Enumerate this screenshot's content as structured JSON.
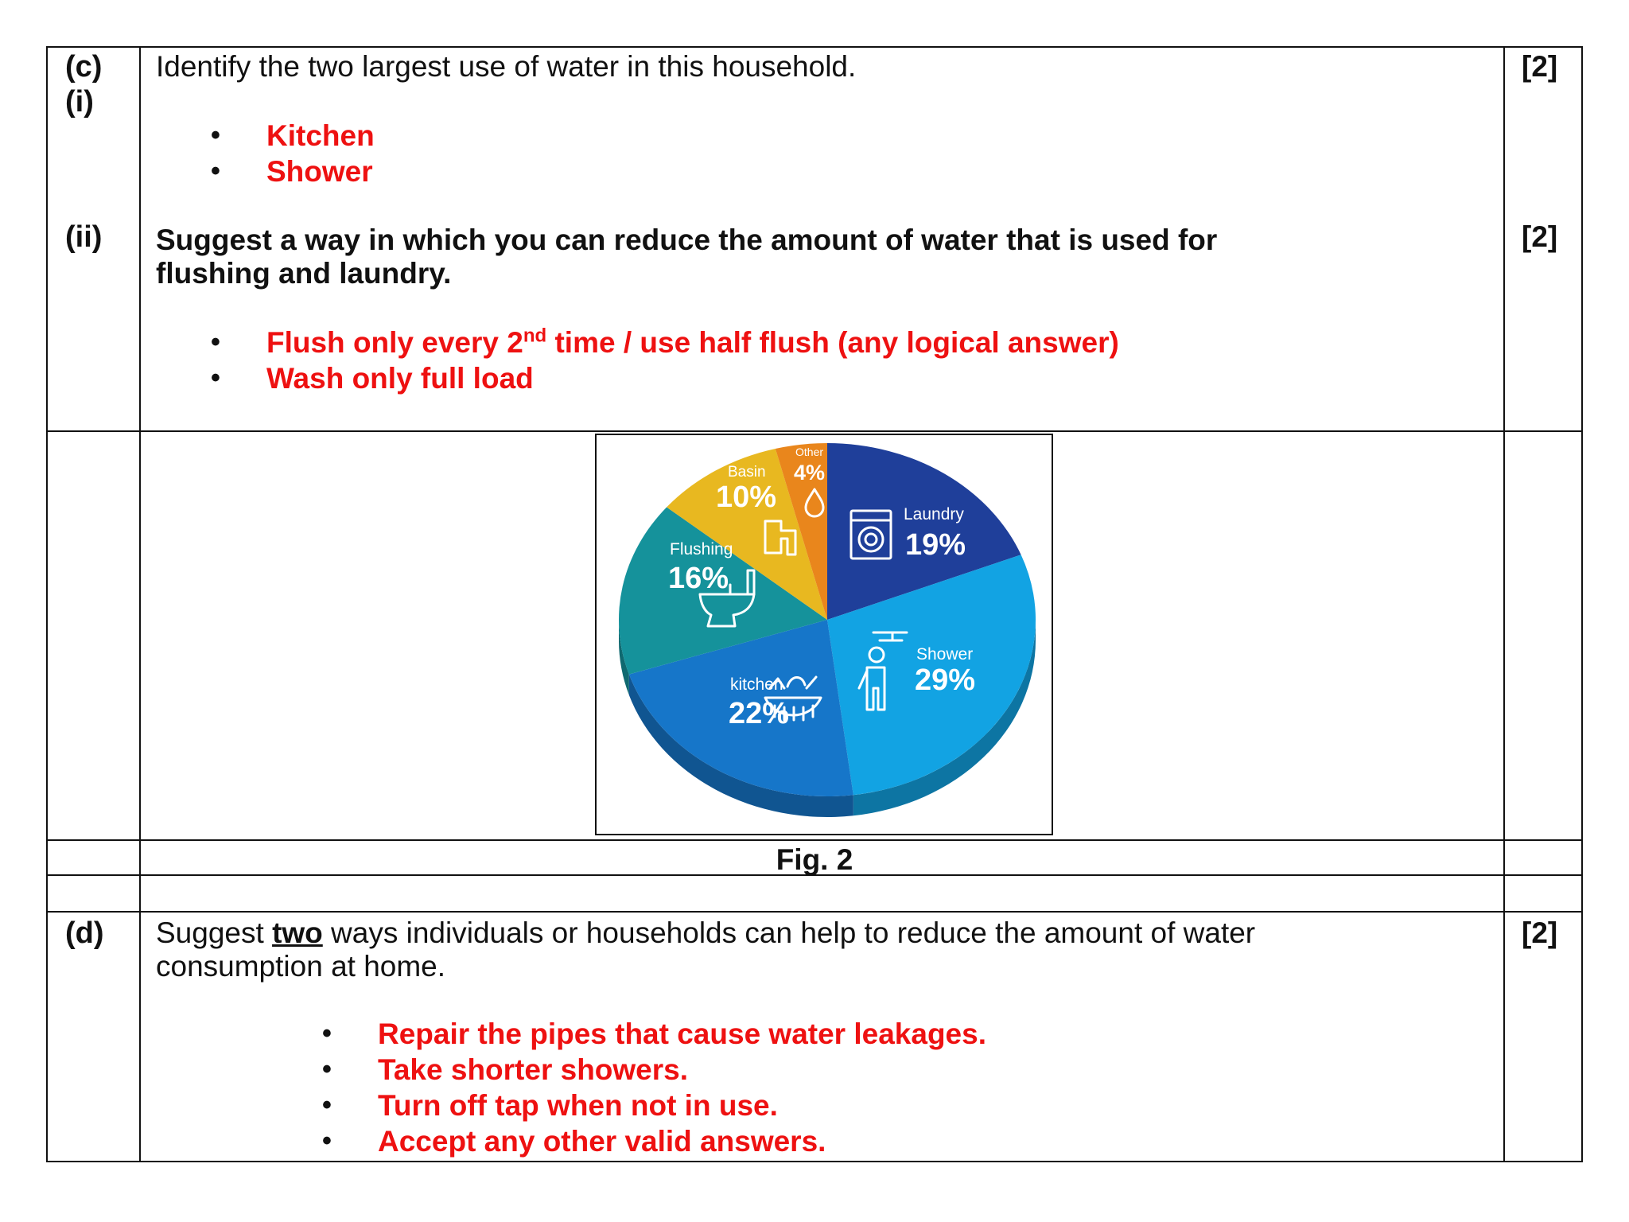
{
  "part_c": {
    "label_c": "(c)",
    "label_i": "(i)",
    "question_i": "Identify the two largest use of water in this household.",
    "marks_i": "[2]",
    "answers_i": [
      "Kitchen",
      "Shower"
    ],
    "label_ii": "(ii)",
    "question_ii_line1": "Suggest a way in which you can reduce the amount of water that is used for",
    "question_ii_line2": "flushing and laundry.",
    "marks_ii": "[2]",
    "answer_ii_1_pre": "Flush only every 2",
    "answer_ii_1_sup": "nd",
    "answer_ii_1_post": " time / use half flush (any logical answer)",
    "answer_ii_2": "Wash only full load"
  },
  "figure": {
    "caption": "Fig. 2"
  },
  "chart_data": {
    "type": "pie",
    "title": "",
    "slices": [
      {
        "label": "Laundry",
        "value": 19,
        "display": "19%",
        "color": "#1f3f9a",
        "icon": "washing-machine-icon"
      },
      {
        "label": "Shower",
        "value": 29,
        "display": "29%",
        "color": "#12a3e3",
        "icon": "shower-person-icon"
      },
      {
        "label": "kitchen",
        "value": 22,
        "display": "22%",
        "color": "#1676c9",
        "icon": "food-basket-icon"
      },
      {
        "label": "Flushing",
        "value": 16,
        "display": "16%",
        "color": "#15929b",
        "icon": "toilet-icon"
      },
      {
        "label": "Basin",
        "value": 10,
        "display": "10%",
        "color": "#e8b820",
        "icon": "tap-icon"
      },
      {
        "label": "Other",
        "value": 4,
        "display": "4%",
        "color": "#e9861c",
        "icon": "water-drop-icon"
      }
    ]
  },
  "part_d": {
    "label": "(d)",
    "question_pre": "Suggest ",
    "question_emph": "two",
    "question_post": " ways individuals or households can help to reduce the amount of water",
    "question_line2": "consumption at home.",
    "marks": "[2]",
    "answers": [
      "Repair the pipes that cause water leakages.",
      "Take shorter showers.",
      "Turn off tap when not in use.",
      "Accept any other valid answers."
    ]
  }
}
